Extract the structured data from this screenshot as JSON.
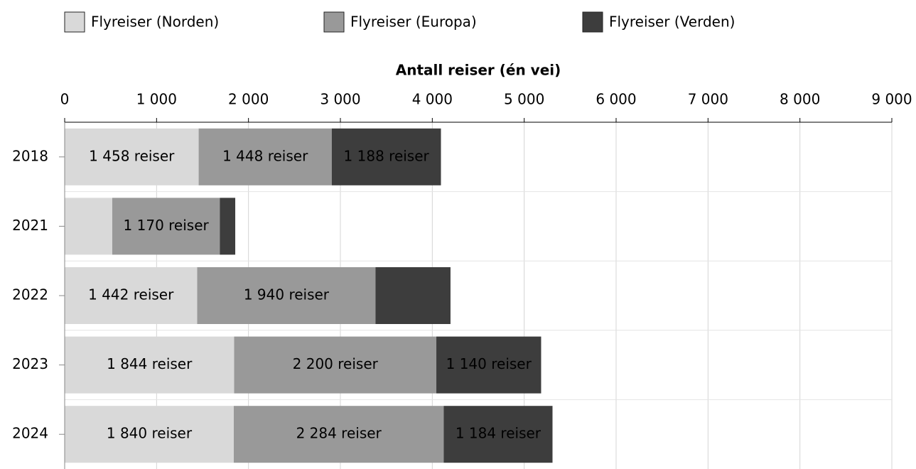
{
  "chart_data": {
    "type": "stacked_barh",
    "x_label": "Antall reiser (én vei)",
    "categories": [
      "2018",
      "2021",
      "2022",
      "2023",
      "2024"
    ],
    "series": [
      {
        "name": "Flyreiser (Norden)",
        "color": "#d9d9d9",
        "values": [
          1458,
          518,
          1442,
          1844,
          1840
        ],
        "value_labels": [
          "1 458 reiser",
          null,
          "1 442 reiser",
          "1 844 reiser",
          "1 840 reiser"
        ]
      },
      {
        "name": "Flyreiser (Europa)",
        "color": "#999999",
        "values": [
          1448,
          1170,
          1940,
          2200,
          2284
        ],
        "value_labels": [
          "1 448 reiser",
          "1 170 reiser",
          "1 940 reiser",
          "2 200 reiser",
          "2 284 reiser"
        ]
      },
      {
        "name": "Flyreiser (Verden)",
        "color": "#3d3d3d",
        "values": [
          1188,
          168,
          816,
          1140,
          1184
        ],
        "value_labels": [
          "1 188 reiser",
          null,
          null,
          "1 140 reiser",
          "1 184 reiser"
        ]
      }
    ],
    "xlim": [
      0,
      9000
    ],
    "xticks": [
      0,
      {
        "value": 1000,
        "label": "1 000"
      },
      {
        "value": 2000,
        "label": "2 000"
      },
      {
        "value": 3000,
        "label": "3 000"
      },
      {
        "value": 4000,
        "label": "4 000"
      },
      {
        "value": 5000,
        "label": "5 000"
      },
      {
        "value": 6000,
        "label": "6 000"
      },
      {
        "value": 7000,
        "label": "7 000"
      },
      {
        "value": 8000,
        "label": "8 000"
      },
      {
        "value": 9000,
        "label": "9 000"
      }
    ],
    "grid": true,
    "legend": "top"
  }
}
